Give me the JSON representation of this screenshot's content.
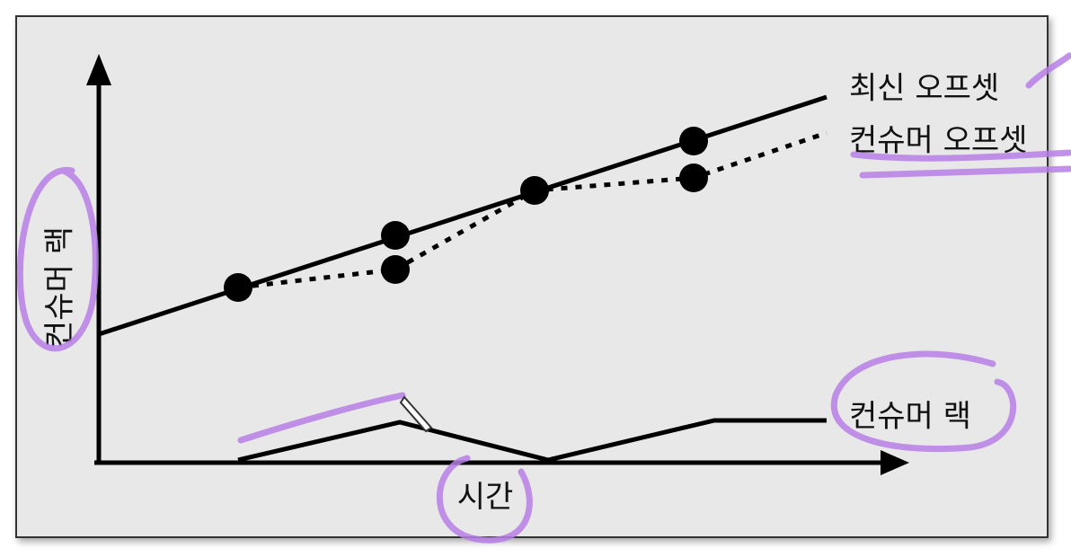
{
  "diagram": {
    "y_axis_label": "컨슈머 랙",
    "x_axis_label": "시간",
    "lines": {
      "latest_offset": "최신 오프셋",
      "consumer_offset": "컨슈머 오프셋",
      "consumer_lag": "컨슈머 랙"
    }
  }
}
